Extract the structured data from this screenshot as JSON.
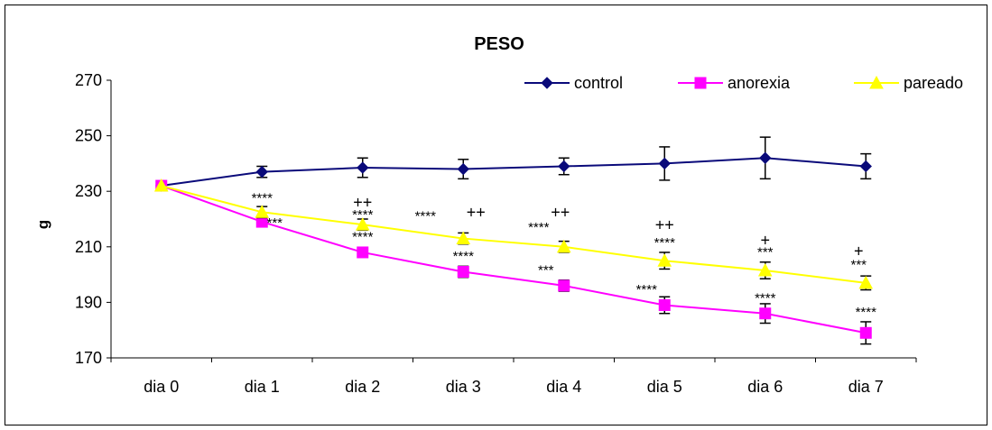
{
  "chart_data": {
    "type": "line",
    "title": "PESO",
    "xlabel": "",
    "ylabel": "g",
    "ylim": [
      170,
      270
    ],
    "yticks": [
      170,
      190,
      210,
      230,
      250,
      270
    ],
    "categories": [
      "dia 0",
      "dia 1",
      "dia 2",
      "dia 3",
      "dia 4",
      "dia 5",
      "dia 6",
      "dia 7"
    ],
    "grid": false,
    "legend_position": "top-right",
    "series": [
      {
        "name": "control",
        "color": "#0a0a7a",
        "marker": "diamond",
        "values": [
          232,
          237,
          238.5,
          238,
          239,
          240,
          242,
          239
        ],
        "errors": [
          0,
          2,
          3.5,
          3.5,
          3,
          6,
          7.5,
          4.5
        ]
      },
      {
        "name": "anorexia",
        "color": "#ff00ff",
        "marker": "square",
        "values": [
          232,
          219,
          208,
          201,
          196,
          189,
          186,
          179
        ],
        "errors": [
          0,
          1.5,
          1.5,
          2,
          2,
          3,
          3.5,
          4
        ]
      },
      {
        "name": "pareado",
        "color": "#ffff00",
        "marker": "triangle",
        "values": [
          232,
          222.5,
          218,
          213,
          210,
          205,
          201.5,
          197
        ],
        "errors": [
          0,
          2,
          2,
          2,
          2,
          3,
          3,
          2.5
        ]
      }
    ],
    "annotations": [
      {
        "category": "dia 1",
        "y": 226,
        "text": "****"
      },
      {
        "category": "dia 1",
        "y": 217,
        "text": "***",
        "dx": 14
      },
      {
        "category": "dia 2",
        "y": 224,
        "text": "++"
      },
      {
        "category": "dia 2",
        "y": 220,
        "text": "****"
      },
      {
        "category": "dia 2",
        "y": 212,
        "text": "****"
      },
      {
        "category": "dia 3",
        "y": 219.5,
        "text": "****",
        "dx": -42
      },
      {
        "category": "dia 3",
        "y": 220.5,
        "text": "++",
        "dx": 14
      },
      {
        "category": "dia 3",
        "y": 205,
        "text": "****"
      },
      {
        "category": "dia 4",
        "y": 215.5,
        "text": "****",
        "dx": -28
      },
      {
        "category": "dia 4",
        "y": 220.5,
        "text": "++",
        "dx": -4
      },
      {
        "category": "dia 4",
        "y": 200,
        "text": "***",
        "dx": -20
      },
      {
        "category": "dia 5",
        "y": 216,
        "text": "++"
      },
      {
        "category": "dia 5",
        "y": 210,
        "text": "****"
      },
      {
        "category": "dia 5",
        "y": 193,
        "text": "****",
        "dx": -20
      },
      {
        "category": "dia 6",
        "y": 210.5,
        "text": "+"
      },
      {
        "category": "dia 6",
        "y": 206.5,
        "text": "***"
      },
      {
        "category": "dia 6",
        "y": 190,
        "text": "****"
      },
      {
        "category": "dia 7",
        "y": 206.5,
        "text": "+",
        "dx": -8
      },
      {
        "category": "dia 7",
        "y": 202,
        "text": "***",
        "dx": -8
      },
      {
        "category": "dia 7",
        "y": 185,
        "text": "****"
      }
    ]
  }
}
